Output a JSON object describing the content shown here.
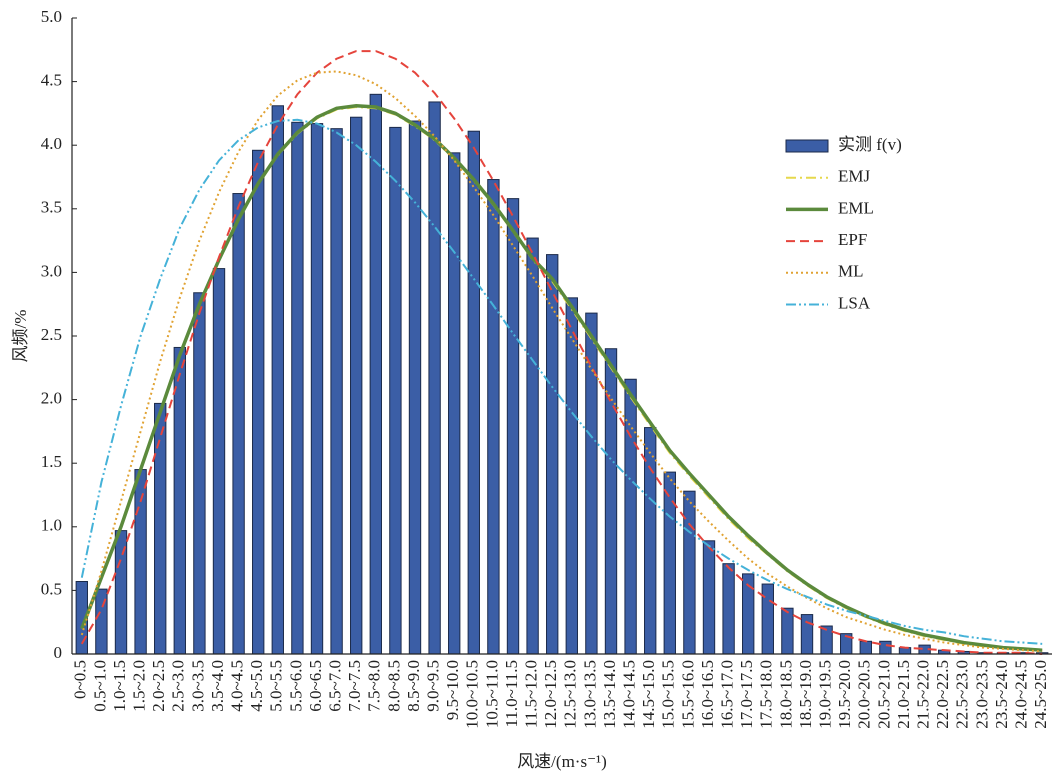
{
  "chart_data": {
    "type": "bar",
    "ylabel": "风频/%",
    "xlabel": "风速/(m·s⁻¹)",
    "categories": [
      "0~0.5",
      "0.5~1.0",
      "1.0~1.5",
      "1.5~2.0",
      "2.0~2.5",
      "2.5~3.0",
      "3.0~3.5",
      "3.5~4.0",
      "4.0~4.5",
      "4.5~5.0",
      "5.0~5.5",
      "5.5~6.0",
      "6.0~6.5",
      "6.5~7.0",
      "7.0~7.5",
      "7.5~8.0",
      "8.0~8.5",
      "8.5~9.0",
      "9.0~9.5",
      "9.5~10.0",
      "10.0~10.5",
      "10.5~11.0",
      "11.0~11.5",
      "11.5~12.0",
      "12.0~12.5",
      "12.5~13.0",
      "13.0~13.5",
      "13.5~14.0",
      "14.0~14.5",
      "14.5~15.0",
      "15.0~15.5",
      "15.5~16.0",
      "16.0~16.5",
      "16.5~17.0",
      "17.0~17.5",
      "17.5~18.0",
      "18.0~18.5",
      "18.5~19.0",
      "19.0~19.5",
      "19.5~20.0",
      "20.0~20.5",
      "20.5~21.0",
      "21.0~21.5",
      "21.5~22.0",
      "22.0~22.5",
      "22.5~23.0",
      "23.0~23.5",
      "23.5~24.0",
      "24.0~24.5",
      "24.5~25.0"
    ],
    "ylim": [
      0,
      5
    ],
    "yticks": [
      0,
      0.5,
      {
        "value": 1,
        "label": "1.0"
      },
      1.5,
      {
        "value": 2,
        "label": "2.0"
      },
      2.5,
      {
        "value": 3,
        "label": "3.0"
      },
      3.5,
      {
        "value": 4,
        "label": "4.0"
      },
      4.5,
      {
        "value": 5,
        "label": "5.0"
      }
    ],
    "series": [
      {
        "name": "实测 f(v)",
        "kind": "bar",
        "color": "#3b5ea6",
        "values": [
          0.57,
          0.51,
          0.97,
          1.45,
          1.97,
          2.41,
          2.84,
          3.03,
          3.62,
          3.96,
          4.31,
          4.18,
          4.17,
          4.13,
          4.22,
          4.4,
          4.14,
          4.19,
          4.34,
          3.94,
          4.11,
          3.73,
          3.58,
          3.27,
          3.14,
          2.8,
          2.68,
          2.4,
          2.16,
          1.78,
          1.43,
          1.28,
          0.89,
          0.71,
          0.63,
          0.55,
          0.36,
          0.31,
          0.22,
          0.16,
          0.1,
          0.1,
          0.05,
          0.07,
          0.03,
          0.02,
          0.01,
          0.01,
          0.01,
          0.01
        ]
      },
      {
        "name": "EMJ",
        "kind": "line",
        "color": "#e6d84c",
        "line_style": "dashdot",
        "values": [
          0.2,
          0.6,
          1.0,
          1.45,
          1.9,
          2.35,
          2.75,
          3.1,
          3.42,
          3.7,
          3.92,
          4.09,
          4.21,
          4.28,
          4.3,
          4.29,
          4.24,
          4.15,
          4.04,
          3.89,
          3.72,
          3.53,
          3.32,
          3.1,
          2.93,
          2.71,
          2.48,
          2.25,
          2.02,
          1.8,
          1.58,
          1.4,
          1.23,
          1.06,
          0.91,
          0.78,
          0.65,
          0.54,
          0.44,
          0.36,
          0.29,
          0.23,
          0.18,
          0.14,
          0.11,
          0.08,
          0.06,
          0.05,
          0.04,
          0.03
        ]
      },
      {
        "name": "EML",
        "kind": "line",
        "color": "#5b8a3c",
        "line_style": "solid",
        "values": [
          0.2,
          0.6,
          1.0,
          1.45,
          1.9,
          2.35,
          2.75,
          3.1,
          3.42,
          3.7,
          3.93,
          4.1,
          4.22,
          4.29,
          4.31,
          4.3,
          4.25,
          4.16,
          4.05,
          3.9,
          3.73,
          3.54,
          3.33,
          3.11,
          2.95,
          2.73,
          2.5,
          2.27,
          2.04,
          1.82,
          1.6,
          1.42,
          1.25,
          1.08,
          0.93,
          0.79,
          0.66,
          0.55,
          0.45,
          0.37,
          0.3,
          0.24,
          0.19,
          0.15,
          0.12,
          0.09,
          0.07,
          0.05,
          0.04,
          0.03
        ]
      },
      {
        "name": "EPF",
        "kind": "line",
        "color": "#e5443c",
        "line_style": "dashed",
        "values": [
          0.08,
          0.35,
          0.75,
          1.2,
          1.7,
          2.2,
          2.68,
          3.12,
          3.52,
          3.87,
          4.16,
          4.4,
          4.57,
          4.68,
          4.74,
          4.74,
          4.68,
          4.57,
          4.41,
          4.21,
          3.98,
          3.72,
          3.44,
          3.15,
          2.85,
          2.55,
          2.26,
          1.98,
          1.71,
          1.46,
          1.23,
          1.02,
          0.84,
          0.68,
          0.54,
          0.43,
          0.33,
          0.25,
          0.19,
          0.14,
          0.1,
          0.07,
          0.05,
          0.04,
          0.03,
          0.02,
          0.01,
          0.01,
          0.01,
          0
        ]
      },
      {
        "name": "ML",
        "kind": "line",
        "color": "#e0a232",
        "line_style": "dotted",
        "values": [
          0.15,
          0.65,
          1.2,
          1.75,
          2.3,
          2.8,
          3.25,
          3.63,
          3.95,
          4.2,
          4.39,
          4.51,
          4.57,
          4.58,
          4.55,
          4.48,
          4.37,
          4.23,
          4.07,
          3.88,
          3.67,
          3.45,
          3.21,
          2.97,
          2.72,
          2.48,
          2.24,
          2.01,
          1.79,
          1.58,
          1.38,
          1.2,
          1.04,
          0.89,
          0.75,
          0.63,
          0.53,
          0.44,
          0.36,
          0.29,
          0.24,
          0.19,
          0.15,
          0.12,
          0.09,
          0.07,
          0.05,
          0.04,
          0.03,
          0.02
        ]
      },
      {
        "name": "LSA",
        "kind": "line",
        "color": "#45b2d8",
        "line_style": "dashdotdot",
        "values": [
          0.6,
          1.35,
          1.95,
          2.5,
          2.95,
          3.35,
          3.65,
          3.88,
          4.04,
          4.14,
          4.19,
          4.2,
          4.17,
          4.1,
          4.0,
          3.87,
          3.72,
          3.55,
          3.36,
          3.16,
          2.95,
          2.74,
          2.52,
          2.31,
          2.1,
          1.9,
          1.71,
          1.53,
          1.37,
          1.22,
          1.08,
          0.96,
          0.85,
          0.75,
          0.66,
          0.58,
          0.51,
          0.45,
          0.39,
          0.34,
          0.3,
          0.26,
          0.22,
          0.19,
          0.17,
          0.14,
          0.12,
          0.1,
          0.09,
          0.08
        ]
      }
    ]
  }
}
